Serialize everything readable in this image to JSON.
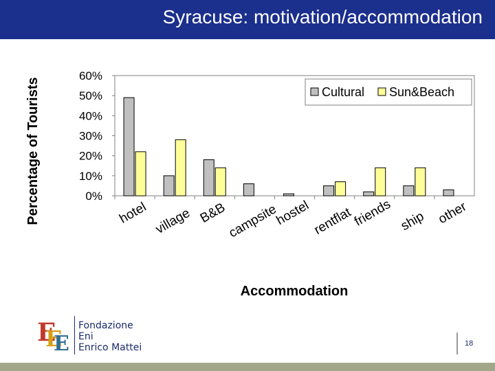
{
  "header": {
    "title": "Syracuse: motivation/accommodation"
  },
  "chart_data": {
    "type": "bar",
    "categories": [
      "hotel",
      "village",
      "B&B",
      "campsite",
      "hostel",
      "rentflat",
      "friends",
      "ship",
      "other"
    ],
    "series": [
      {
        "name": "Cultural",
        "values": [
          49,
          10,
          18,
          6,
          1,
          5,
          2,
          5,
          3
        ],
        "color": "#c0c0c0"
      },
      {
        "name": "Sun&Beach",
        "values": [
          22,
          28,
          14,
          0,
          0,
          7,
          14,
          14,
          0
        ],
        "color": "#ffff99"
      }
    ],
    "xlabel": "Accommodation",
    "ylabel": "Percentage of Tourists",
    "ylim": [
      0,
      60
    ],
    "yticks": [
      "0%",
      "10%",
      "20%",
      "30%",
      "40%",
      "50%",
      "60%"
    ],
    "grid": false,
    "legend_position": "top-right"
  },
  "logo": {
    "line1": "Fondazione",
    "line2": "Eni",
    "line3": "Enrico Mattei"
  },
  "footer": {
    "page_number": "18"
  }
}
